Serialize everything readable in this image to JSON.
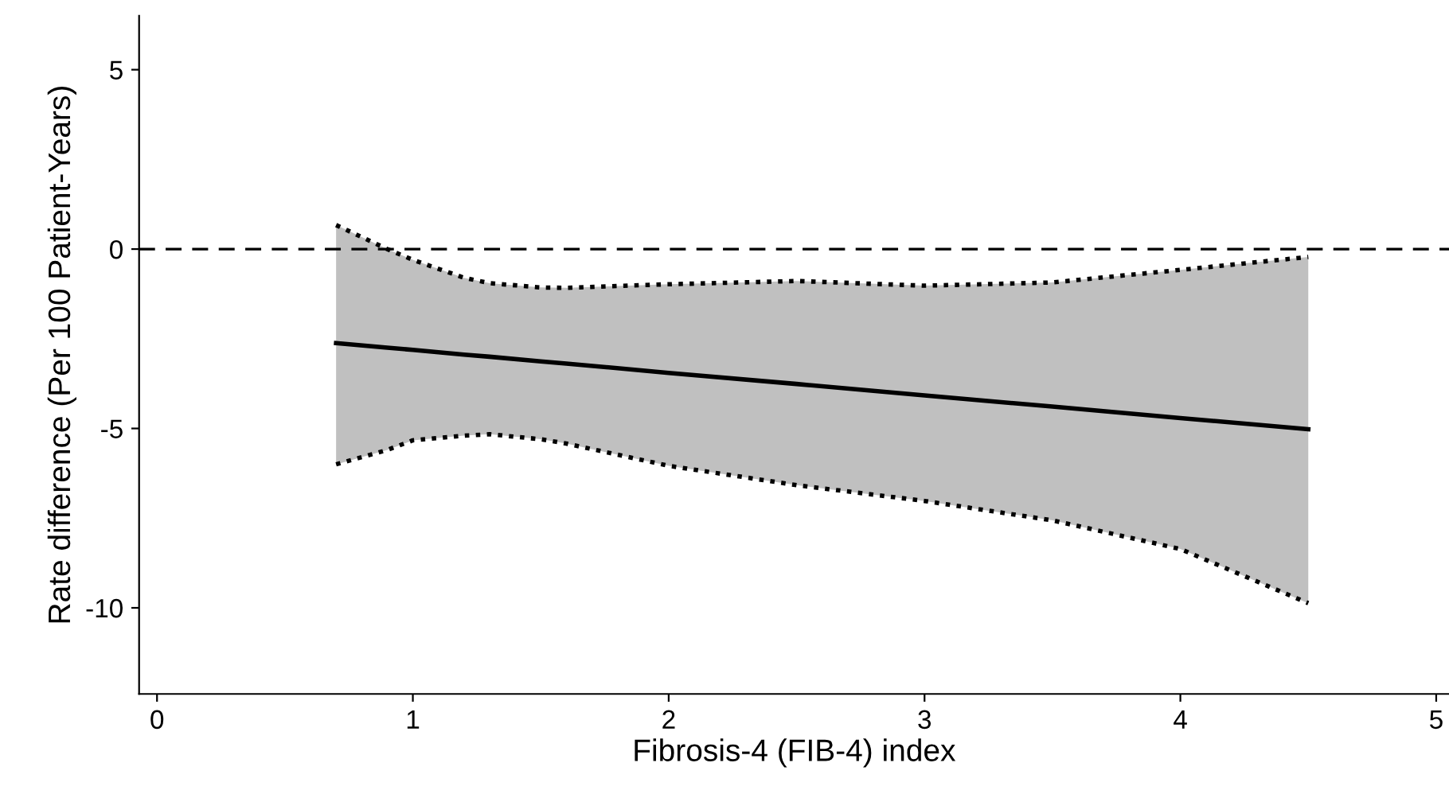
{
  "chart_data": {
    "type": "line",
    "xlabel": "Fibrosis-4 (FIB-4) index",
    "ylabel": "Rate difference (Per 100 Patient-Years)",
    "x": [
      0.7,
      0.9,
      1.0,
      1.2,
      1.3,
      1.5,
      1.6,
      2.0,
      2.5,
      3.0,
      3.5,
      4.0,
      4.5
    ],
    "series": [
      {
        "color": "#000000",
        "values": [
          -2.62,
          -2.75,
          -2.81,
          -2.94,
          -3.0,
          -3.13,
          -3.19,
          -3.45,
          -3.76,
          -4.08,
          -4.39,
          -4.71,
          -5.02
        ],
        "lower": [
          -6.0,
          -5.6,
          -5.33,
          -5.2,
          -5.16,
          -5.3,
          -5.42,
          -6.04,
          -6.58,
          -7.02,
          -7.56,
          -8.36,
          -9.87
        ],
        "upper": [
          0.67,
          0.0,
          -0.3,
          -0.8,
          -0.95,
          -1.07,
          -1.08,
          -0.98,
          -0.89,
          -1.02,
          -0.93,
          -0.58,
          -0.22
        ]
      },
      {
        "color": "#000000",
        "line_style": "dotted",
        "values": [
          -6.0,
          -5.6,
          -5.33,
          -5.2,
          -5.16,
          -5.3,
          -5.42,
          -6.04,
          -6.58,
          -7.02,
          -7.56,
          -8.36,
          -9.87
        ]
      },
      {
        "color": "#000000",
        "line_style": "dotted",
        "values": [
          0.67,
          0.0,
          -0.3,
          -0.8,
          -0.95,
          -1.07,
          -1.08,
          -0.98,
          -0.89,
          -1.02,
          -0.93,
          -0.58,
          -0.22
        ]
      }
    ],
    "line_style": "solid",
    "marker": "none",
    "ref_lines": [
      {
        "axis": "y",
        "value": 0,
        "line_style": "dashed",
        "color": "#000000"
      }
    ],
    "xlim": [
      -0.07,
      5.05
    ],
    "ylim": [
      -12.4,
      6.5
    ],
    "xticks": [
      0,
      1,
      2,
      3,
      4,
      5
    ],
    "yticks": [
      -10,
      -5,
      0,
      5
    ],
    "grid": false,
    "legend": false
  }
}
